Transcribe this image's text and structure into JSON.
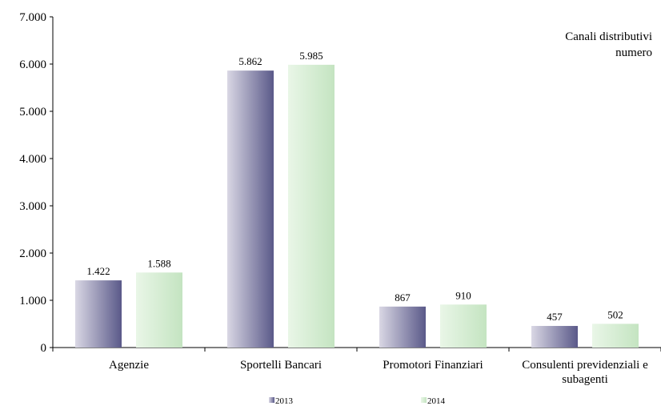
{
  "chart_data": {
    "type": "bar",
    "title": "Canali distributivi",
    "subtitle": "numero",
    "categories": [
      "Agenzie",
      "Sportelli Bancari",
      "Promotori Finanziari",
      "Consulenti previdenziali e subagenti"
    ],
    "category_lines": [
      [
        "Agenzie"
      ],
      [
        "Sportelli Bancari"
      ],
      [
        "Promotori Finanziari"
      ],
      [
        "Consulenti previdenziali e",
        "subagenti"
      ]
    ],
    "series": [
      {
        "name": "2013",
        "values": [
          1422,
          5862,
          867,
          457
        ],
        "labels": [
          "1.422",
          "5.862",
          "867",
          "457"
        ],
        "color": "#5c5b8c",
        "color_light": "#d6d4e2"
      },
      {
        "name": "2014",
        "values": [
          1588,
          5985,
          910,
          502
        ],
        "labels": [
          "1.588",
          "5.985",
          "910",
          "502"
        ],
        "color": "#c6e6c4",
        "color_light": "#e6f5e4"
      }
    ],
    "ylim": [
      0,
      7000
    ],
    "yticks": [
      0,
      1000,
      2000,
      3000,
      4000,
      5000,
      6000,
      7000
    ],
    "ytick_labels": [
      "0",
      "1.000",
      "2.000",
      "3.000",
      "4.000",
      "5.000",
      "6.000",
      "7.000"
    ],
    "xlabel": "",
    "ylabel": "",
    "grid": false,
    "legend_position": "bottom"
  }
}
